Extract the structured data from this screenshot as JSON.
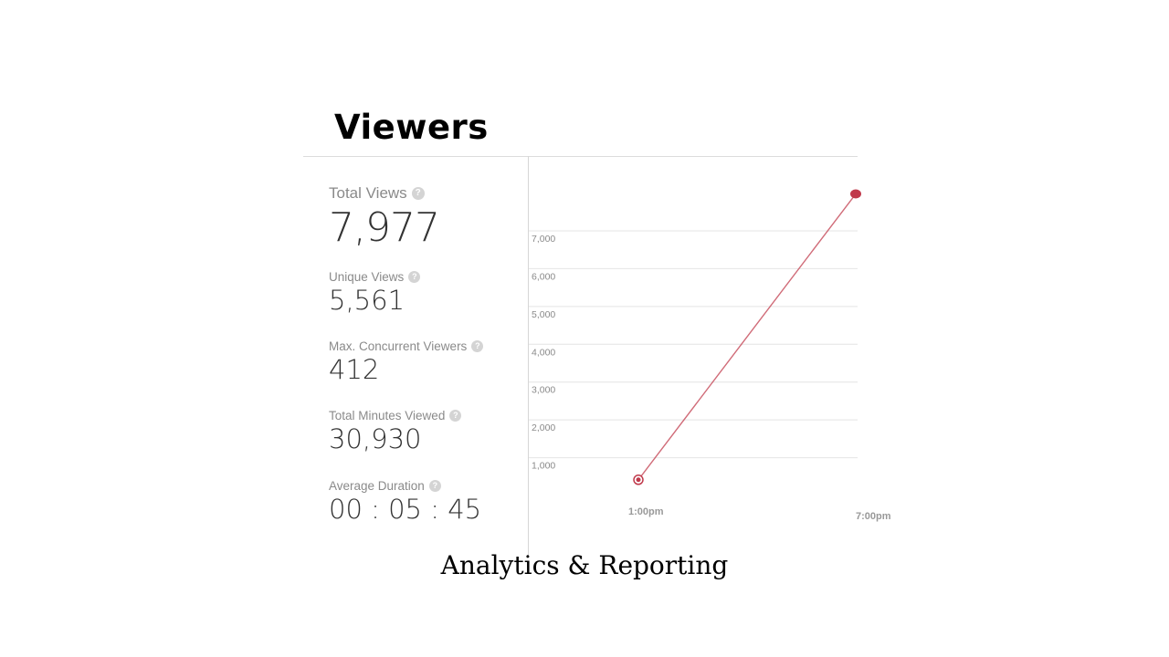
{
  "heading": "Viewers",
  "stats": {
    "total_views": {
      "label": "Total Views",
      "value": "7,977"
    },
    "unique_views": {
      "label": "Unique Views",
      "value": "5,561"
    },
    "max_concurrent": {
      "label": "Max. Concurrent Viewers",
      "value": "412"
    },
    "total_minutes": {
      "label": "Total Minutes Viewed",
      "value": "30,930"
    },
    "average_duration": {
      "label": "Average Duration",
      "value": "00 : 05 : 45"
    }
  },
  "help_icon": {
    "glyph": "?",
    "name": "help-icon",
    "color": "#d4d4d4"
  },
  "caption": "Analytics & Reporting",
  "chart_data": {
    "type": "line",
    "title": "",
    "xlabel": "",
    "ylabel": "",
    "x": [
      "1:00pm",
      "7:00pm"
    ],
    "y_ticks": [
      "1,000",
      "2,000",
      "3,000",
      "4,000",
      "5,000",
      "6,000",
      "7,000"
    ],
    "y_tick_values": [
      1000,
      2000,
      3000,
      4000,
      5000,
      6000,
      7000
    ],
    "series": [
      {
        "values": [
          416,
          7977
        ],
        "color": "#c0394b"
      }
    ],
    "ylim": [
      0,
      7000
    ],
    "grid": true
  }
}
